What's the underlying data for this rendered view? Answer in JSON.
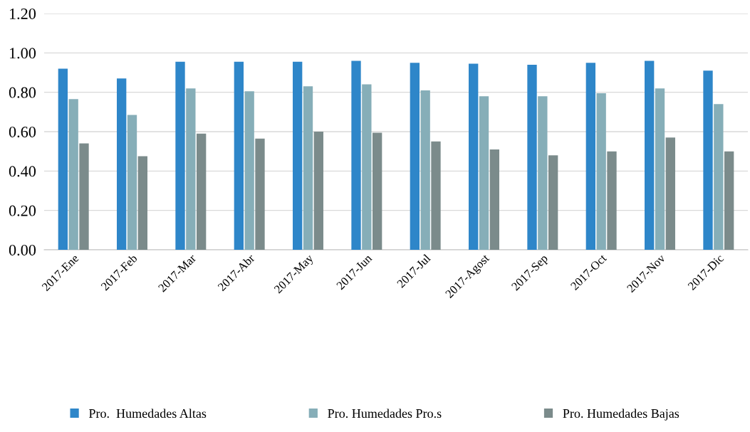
{
  "chart_data": {
    "type": "bar",
    "categories": [
      "2017-Ene",
      "2017-Feb",
      "2017-Mar",
      "2017-Abr",
      "2017-May",
      "2017-Jun",
      "2017-Jul",
      "2017-Agost",
      "2017-Sep",
      "2017-Oct",
      "2017-Nov",
      "2017-Dic"
    ],
    "series": [
      {
        "name": "Pro.  Humedades Altas",
        "color": "#2e86c9",
        "values": [
          0.92,
          0.87,
          0.955,
          0.955,
          0.955,
          0.96,
          0.95,
          0.945,
          0.94,
          0.95,
          0.96,
          0.91
        ]
      },
      {
        "name": "Pro. Humedades Pro.s",
        "color": "#86aeb8",
        "values": [
          0.765,
          0.685,
          0.82,
          0.805,
          0.83,
          0.84,
          0.81,
          0.78,
          0.78,
          0.795,
          0.82,
          0.74
        ]
      },
      {
        "name": "Pro. Humedades Bajas",
        "color": "#7b8b8b",
        "values": [
          0.54,
          0.475,
          0.59,
          0.565,
          0.6,
          0.595,
          0.55,
          0.51,
          0.48,
          0.5,
          0.57,
          0.5
        ]
      }
    ],
    "ylim": [
      0,
      1.2
    ],
    "yticks": [
      {
        "value": 0,
        "label": "0.00"
      },
      {
        "value": 0.2,
        "label": "0.20"
      },
      {
        "value": 0.4,
        "label": "0.40"
      },
      {
        "value": 0.6,
        "label": "0.60"
      },
      {
        "value": 0.8,
        "label": "0.80"
      },
      {
        "value": 1.0,
        "label": "1.00"
      },
      {
        "value": 1.2,
        "label": "1.20"
      }
    ],
    "grid": "y",
    "legend": "bottom"
  }
}
